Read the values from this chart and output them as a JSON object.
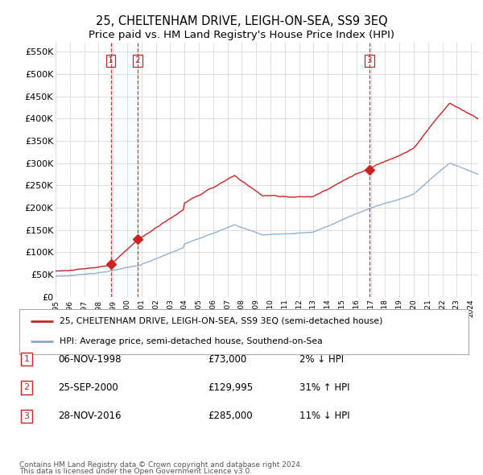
{
  "title": "25, CHELTENHAM DRIVE, LEIGH-ON-SEA, SS9 3EQ",
  "subtitle": "Price paid vs. HM Land Registry's House Price Index (HPI)",
  "ylim": [
    0,
    570000
  ],
  "yticks": [
    0,
    50000,
    100000,
    150000,
    200000,
    250000,
    300000,
    350000,
    400000,
    450000,
    500000,
    550000
  ],
  "ytick_labels": [
    "£0",
    "£50K",
    "£100K",
    "£150K",
    "£200K",
    "£250K",
    "£300K",
    "£350K",
    "£400K",
    "£450K",
    "£500K",
    "£550K"
  ],
  "background_color": "#ffffff",
  "grid_color": "#dddddd",
  "property_line_color": "#cc2222",
  "hpi_line_color": "#88aacc",
  "transaction_line_color": "#cc2222",
  "shade_color": "#ddeeff",
  "legend_property": "25, CHELTENHAM DRIVE, LEIGH-ON-SEA, SS9 3EQ (semi-detached house)",
  "legend_hpi": "HPI: Average price, semi-detached house, Southend-on-Sea",
  "transactions": [
    {
      "label": "1",
      "date": "06-NOV-1998",
      "year": 1998.85,
      "price": 73000,
      "text": "2% ↓ HPI"
    },
    {
      "label": "2",
      "date": "25-SEP-2000",
      "year": 2000.73,
      "price": 129995,
      "text": "31% ↑ HPI"
    },
    {
      "label": "3",
      "date": "28-NOV-2016",
      "year": 2016.9,
      "price": 285000,
      "text": "11% ↓ HPI"
    }
  ],
  "footer_line1": "Contains HM Land Registry data © Crown copyright and database right 2024.",
  "footer_line2": "This data is licensed under the Open Government Licence v3.0."
}
